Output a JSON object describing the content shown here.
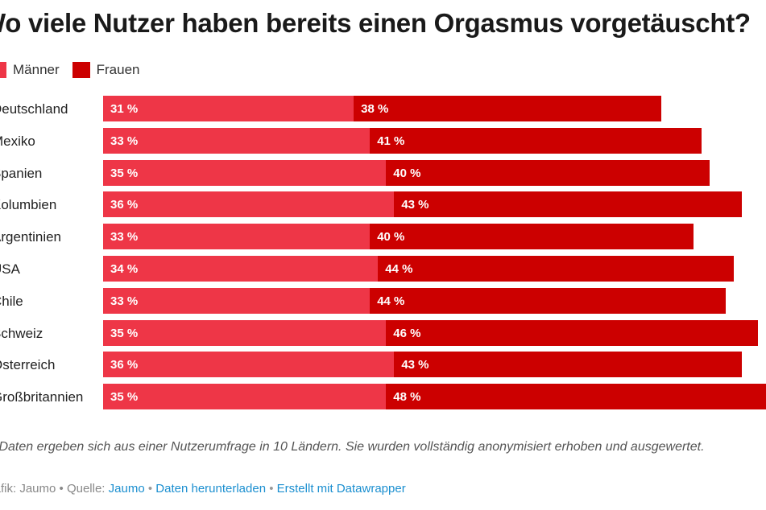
{
  "chart_data": {
    "type": "bar",
    "stacked": true,
    "orientation": "horizontal",
    "title": "Wo viele Nutzer haben bereits einen Orgasmus vorgetäuscht?",
    "categories": [
      "Deutschland",
      "Mexiko",
      "Spanien",
      "Kolumbien",
      "Argentinien",
      "USA",
      "Chile",
      "Schweiz",
      "Österreich",
      "Großbritannien"
    ],
    "series": [
      {
        "name": "Männer",
        "color": "#ee3647",
        "values": [
          31,
          33,
          35,
          36,
          33,
          34,
          33,
          35,
          36,
          35
        ]
      },
      {
        "name": "Frauen",
        "color": "#cc0000",
        "values": [
          38,
          41,
          40,
          43,
          40,
          44,
          44,
          46,
          43,
          48
        ]
      }
    ],
    "value_suffix": " %",
    "xlim": [
      0,
      82
    ],
    "legend_position": "top-left",
    "note": "Die Daten ergeben sich aus einer Nutzerumfrage in 10 Ländern. Sie wurden vollständig anonymisiert erhoben und ausgewertet.",
    "credits": {
      "prefix": "Grafik: Jaumo • Quelle: ",
      "source": "Jaumo",
      "sep1": " • ",
      "download": "Daten herunterladen",
      "sep2": " • ",
      "made_with": "Erstellt mit Datawrapper"
    }
  }
}
